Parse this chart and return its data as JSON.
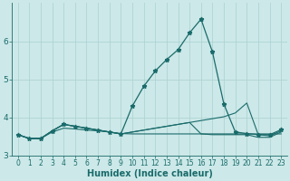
{
  "xlabel": "Humidex (Indice chaleur)",
  "bg_color": "#cce8e8",
  "line_color": "#1a6b6b",
  "grid_color": "#aad0d0",
  "xlim": [
    -0.5,
    23.5
  ],
  "ylim": [
    3.0,
    7.0
  ],
  "yticks": [
    3,
    4,
    5,
    6
  ],
  "xticks": [
    0,
    1,
    2,
    3,
    4,
    5,
    6,
    7,
    8,
    9,
    10,
    11,
    12,
    13,
    14,
    15,
    16,
    17,
    18,
    19,
    20,
    21,
    22,
    23
  ],
  "xtick_labels": [
    "0",
    "1",
    "2",
    "3",
    "4",
    "5",
    "6",
    "7",
    "8",
    "9",
    "10",
    "11",
    "12",
    "13",
    "14",
    "15",
    "16",
    "17",
    "18",
    "19",
    "20",
    "21",
    "22",
    "23"
  ],
  "series": [
    [
      3.55,
      3.45,
      3.45,
      3.65,
      3.82,
      3.77,
      3.72,
      3.67,
      3.62,
      3.57,
      4.3,
      4.82,
      5.22,
      5.52,
      5.78,
      6.22,
      6.58,
      5.72,
      4.35,
      3.62,
      3.58,
      3.55,
      3.55,
      3.68
    ],
    [
      3.55,
      3.45,
      3.45,
      3.65,
      3.82,
      3.77,
      3.72,
      3.67,
      3.62,
      3.57,
      3.62,
      3.67,
      3.72,
      3.77,
      3.82,
      3.87,
      3.57,
      3.55,
      3.55,
      3.55,
      3.55,
      3.48,
      3.48,
      3.62
    ],
    [
      3.55,
      3.45,
      3.45,
      3.65,
      3.82,
      3.77,
      3.72,
      3.67,
      3.62,
      3.57,
      3.62,
      3.67,
      3.72,
      3.77,
      3.82,
      3.87,
      3.92,
      3.97,
      4.02,
      4.12,
      4.38,
      3.55,
      3.52,
      3.65
    ],
    [
      3.55,
      3.45,
      3.45,
      3.62,
      3.72,
      3.7,
      3.67,
      3.65,
      3.62,
      3.58,
      3.57,
      3.57,
      3.57,
      3.57,
      3.57,
      3.57,
      3.57,
      3.57,
      3.57,
      3.57,
      3.57,
      3.57,
      3.57,
      3.57
    ]
  ],
  "series_has_markers": [
    true,
    false,
    false,
    false
  ],
  "marker_indices": [
    0,
    1,
    2,
    3,
    4,
    5,
    6,
    7,
    8,
    9,
    10,
    11,
    12,
    13,
    14,
    15,
    16,
    17,
    18,
    19,
    20,
    21,
    22,
    23
  ]
}
